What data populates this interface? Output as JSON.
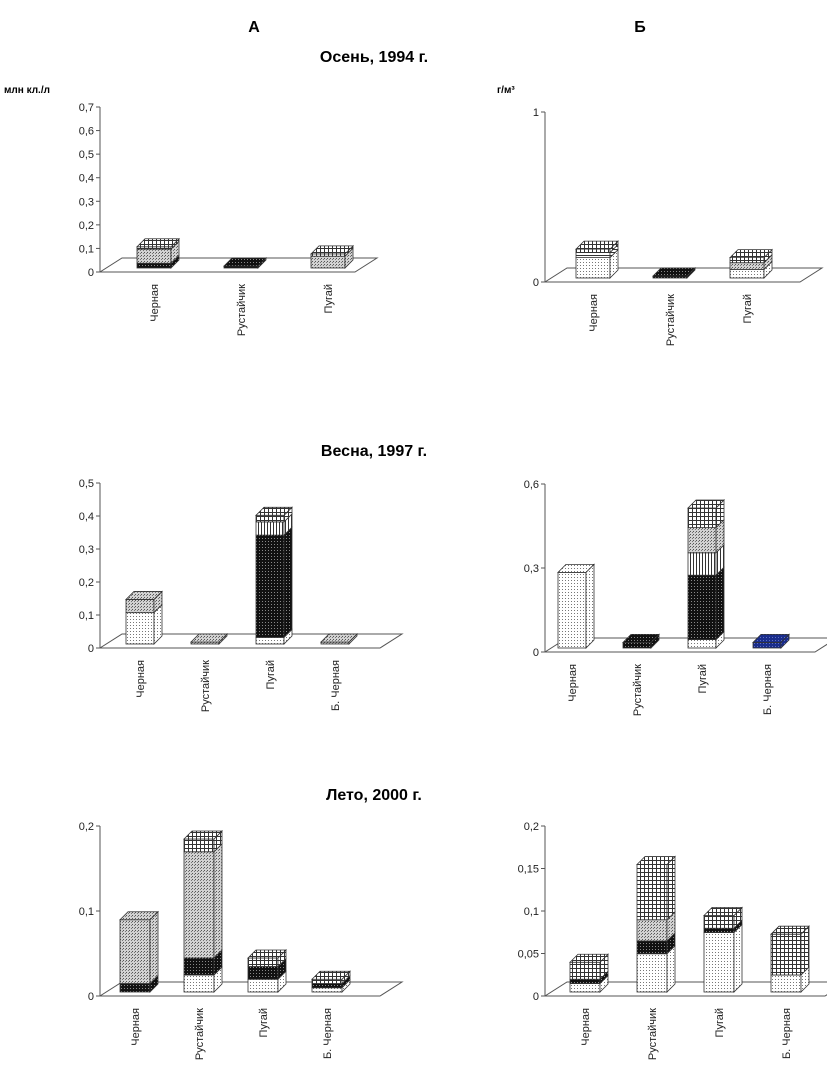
{
  "columns": [
    "А",
    "Б"
  ],
  "sections": [
    "Осень, 1994 г.",
    "Весна, 1997 г.",
    "Лето, 2000 г."
  ],
  "units": [
    "млн кл./л",
    "г/м³"
  ],
  "colors": {
    "dots": "#ffffff",
    "black": "#111111",
    "hatch": "#cccccc",
    "grid": "#ffffff",
    "vlines": "#ffffff",
    "hlines": "#ffffff",
    "blue": "#1a2d8c"
  },
  "chart_data": [
    {
      "type": "bar",
      "stacked": true,
      "three_d": true,
      "column": "А",
      "section": "Осень, 1994 г.",
      "ylabel": "млн кл./л",
      "ylim": [
        0,
        0.7
      ],
      "yticks": [
        "0",
        "0,1",
        "0,2",
        "0,3",
        "0,4",
        "0,5",
        "0,6",
        "0,7"
      ],
      "categories": [
        "Черная",
        "Рустайчик",
        "Пугай"
      ],
      "segments": [
        [
          {
            "pattern": "black",
            "value": 0.02
          },
          {
            "pattern": "hatch",
            "value": 0.06
          },
          {
            "pattern": "grid",
            "value": 0.01
          }
        ],
        [
          {
            "pattern": "black",
            "value": 0.002
          }
        ],
        [
          {
            "pattern": "hatch",
            "value": 0.05
          },
          {
            "pattern": "grid",
            "value": 0.01
          }
        ]
      ]
    },
    {
      "type": "bar",
      "stacked": true,
      "three_d": true,
      "column": "Б",
      "section": "Осень, 1994 г.",
      "ylabel": "г/м³",
      "ylim": [
        0,
        1
      ],
      "yticks": [
        "0",
        "1"
      ],
      "categories": [
        "Черная",
        "Рустайчик",
        "Пугай"
      ],
      "segments": [
        [
          {
            "pattern": "dots",
            "value": 0.12
          },
          {
            "pattern": "hlines",
            "value": 0.03
          },
          {
            "pattern": "grid",
            "value": 0.02
          }
        ],
        [
          {
            "pattern": "black",
            "value": 0.005
          }
        ],
        [
          {
            "pattern": "dots",
            "value": 0.05
          },
          {
            "pattern": "hatch",
            "value": 0.04
          },
          {
            "pattern": "grid",
            "value": 0.03
          }
        ]
      ]
    },
    {
      "type": "bar",
      "stacked": true,
      "three_d": true,
      "column": "А",
      "section": "Весна, 1997 г.",
      "ylim": [
        0,
        0.5
      ],
      "yticks": [
        "0",
        "0,1",
        "0,2",
        "0,3",
        "0,4",
        "0,5"
      ],
      "categories": [
        "Черная",
        "Рустайчик",
        "Пугай",
        "Б. Черная"
      ],
      "segments": [
        [
          {
            "pattern": "dots",
            "value": 0.095
          },
          {
            "pattern": "hatch",
            "value": 0.04
          }
        ],
        [
          {
            "pattern": "hatch",
            "value": 0.002
          }
        ],
        [
          {
            "pattern": "dots",
            "value": 0.02
          },
          {
            "pattern": "black",
            "value": 0.31
          },
          {
            "pattern": "vlines",
            "value": 0.04
          },
          {
            "pattern": "grid",
            "value": 0.02
          }
        ],
        [
          {
            "pattern": "hatch",
            "value": 0.005
          }
        ]
      ]
    },
    {
      "type": "bar",
      "stacked": true,
      "three_d": true,
      "column": "Б",
      "section": "Весна, 1997 г.",
      "ylim": [
        0,
        0.6
      ],
      "yticks": [
        "0",
        "0,3",
        "0,6"
      ],
      "categories": [
        "Черная",
        "Рустайчик",
        "Пугай",
        "Б. Черная"
      ],
      "segments": [
        [
          {
            "pattern": "dots",
            "value": 0.27
          }
        ],
        [
          {
            "pattern": "black",
            "value": 0.02
          }
        ],
        [
          {
            "pattern": "dots",
            "value": 0.03
          },
          {
            "pattern": "black",
            "value": 0.23
          },
          {
            "pattern": "vlines",
            "value": 0.08
          },
          {
            "pattern": "hatch",
            "value": 0.09
          },
          {
            "pattern": "grid",
            "value": 0.07
          }
        ],
        [
          {
            "pattern": "blue",
            "value": 0.02
          }
        ]
      ]
    },
    {
      "type": "bar",
      "stacked": true,
      "three_d": true,
      "column": "А",
      "section": "Лето, 2000 г.",
      "ylim": [
        0,
        0.2
      ],
      "yticks": [
        "0",
        "0,1",
        "0,2"
      ],
      "categories": [
        "Черная",
        "Рустайчик",
        "Пугай",
        "Б. Черная"
      ],
      "segments": [
        [
          {
            "pattern": "black",
            "value": 0.01
          },
          {
            "pattern": "hatch",
            "value": 0.075
          }
        ],
        [
          {
            "pattern": "dots",
            "value": 0.02
          },
          {
            "pattern": "black",
            "value": 0.02
          },
          {
            "pattern": "hatch",
            "value": 0.125
          },
          {
            "pattern": "grid",
            "value": 0.015
          }
        ],
        [
          {
            "pattern": "dots",
            "value": 0.015
          },
          {
            "pattern": "black",
            "value": 0.015
          },
          {
            "pattern": "grid",
            "value": 0.01
          }
        ],
        [
          {
            "pattern": "dots",
            "value": 0.005
          },
          {
            "pattern": "black",
            "value": 0.005
          },
          {
            "pattern": "grid",
            "value": 0.005
          }
        ]
      ]
    },
    {
      "type": "bar",
      "stacked": true,
      "three_d": true,
      "column": "Б",
      "section": "Лето, 2000 г.",
      "ylim": [
        0,
        0.2
      ],
      "yticks": [
        "0",
        "0,05",
        "0,1",
        "0,15",
        "0,2"
      ],
      "categories": [
        "Черная",
        "Рустайчик",
        "Пугай",
        "Б. Черная"
      ],
      "segments": [
        [
          {
            "pattern": "dots",
            "value": 0.01
          },
          {
            "pattern": "black",
            "value": 0.005
          },
          {
            "pattern": "grid",
            "value": 0.02
          }
        ],
        [
          {
            "pattern": "dots",
            "value": 0.045
          },
          {
            "pattern": "black",
            "value": 0.015
          },
          {
            "pattern": "hatch",
            "value": 0.025
          },
          {
            "pattern": "grid",
            "value": 0.065
          }
        ],
        [
          {
            "pattern": "dots",
            "value": 0.07
          },
          {
            "pattern": "black",
            "value": 0.005
          },
          {
            "pattern": "grid",
            "value": 0.015
          }
        ],
        [
          {
            "pattern": "dots",
            "value": 0.02
          },
          {
            "pattern": "grid",
            "value": 0.048
          }
        ]
      ]
    }
  ]
}
